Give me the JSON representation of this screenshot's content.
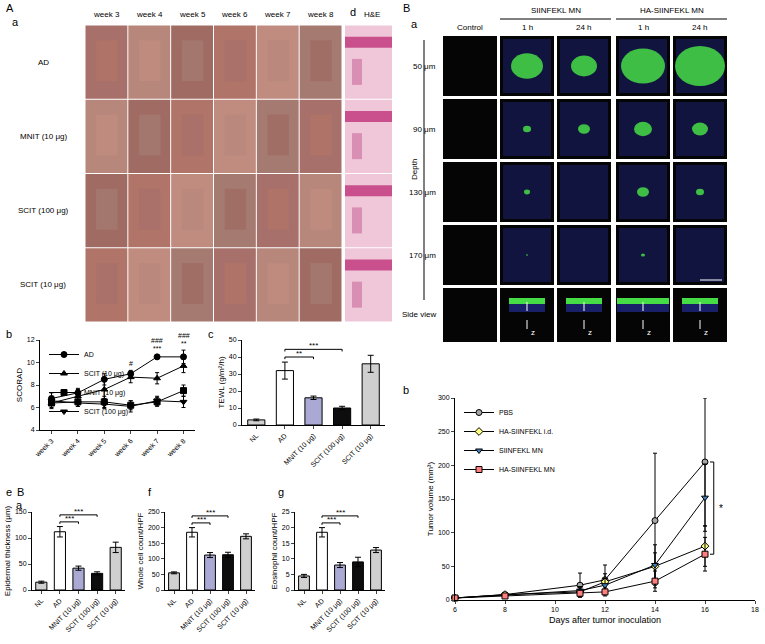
{
  "panel_labels": [
    "A",
    "a",
    "d",
    "b",
    "c",
    "e",
    "B",
    "a",
    "f",
    "g",
    "B",
    "a",
    "b"
  ],
  "photos": {
    "weeks": [
      "week 3",
      "week 4",
      "week 5",
      "week 6",
      "week 7",
      "week 8"
    ],
    "groups": [
      "AD",
      "MNIT (10 μg)",
      "SCIT (100 μg)",
      "SCIT (10 μg)"
    ],
    "stain": "H&E"
  },
  "microscopy": {
    "columns": [
      "Control",
      "SIINFEKL MN",
      "HA-SIINFEKL MN"
    ],
    "times": [
      "1 h",
      "24 h",
      "1 h",
      "24 h"
    ],
    "axis_title": "Depth",
    "rows": [
      "50 μm",
      "90 μm",
      "130 μm",
      "170 μm",
      "Side view"
    ],
    "arrow_label": "z"
  },
  "chart_data": [
    {
      "type": "line",
      "y_label": "SCORAD",
      "categories": [
        "week 3",
        "week 4",
        "week 5",
        "week 6",
        "week 7",
        "week 8"
      ],
      "series": [
        {
          "name": "AD",
          "color": "#000000",
          "marker": "circle",
          "values": [
            6.8,
            7.3,
            8.5,
            9.0,
            10.5,
            10.5
          ],
          "errors": [
            0.5,
            0.4,
            0.5,
            0.3,
            0.2,
            0.6
          ]
        },
        {
          "name": "SCIT (10 μg)",
          "color": "#000000",
          "marker": "triangle-up",
          "values": [
            6.4,
            7.0,
            7.6,
            8.7,
            8.6,
            9.7
          ],
          "errors": [
            0.5,
            0.6,
            0.8,
            0.5,
            0.5,
            0.6
          ]
        },
        {
          "name": "MNIT (10 μg)",
          "color": "#000000",
          "marker": "square",
          "values": [
            6.4,
            6.5,
            6.5,
            6.2,
            6.5,
            7.5
          ],
          "errors": [
            0.4,
            0.4,
            0.5,
            0.4,
            0.4,
            0.5
          ]
        },
        {
          "name": "SCIT (100 μg)",
          "color": "#000000",
          "marker": "triangle-down",
          "values": [
            6.6,
            6.4,
            6.3,
            6.1,
            6.6,
            6.5
          ],
          "errors": [
            0.4,
            0.3,
            0.4,
            0.5,
            0.4,
            0.5
          ]
        }
      ],
      "ylim": [
        4,
        12
      ],
      "yticks": [
        4,
        6,
        8,
        10,
        12
      ],
      "grid": false,
      "legend": "top-left",
      "annotations": [
        {
          "x": "week 6",
          "text": [
            "#"
          ]
        },
        {
          "x": "week 7",
          "text": [
            "###",
            "***"
          ]
        },
        {
          "x": "week 8",
          "text": [
            "###",
            "**"
          ]
        }
      ]
    },
    {
      "type": "bar",
      "y_label": "TEWL (g/m²/h)",
      "categories": [
        "NL",
        "AD",
        "MNIT (10 μg)",
        "SCIT (100 μg)",
        "SCIT (10 μg)"
      ],
      "values": [
        3,
        32,
        16,
        10,
        36
      ],
      "errors": [
        0.5,
        5,
        1,
        1,
        5
      ],
      "colors": [
        "#d0d0d0",
        "#ffffff",
        "#a9a9d4",
        "#0d0d0d",
        "#cfcfcf"
      ],
      "ylim": [
        0,
        50
      ],
      "yticks": [
        0,
        10,
        20,
        30,
        40,
        50
      ],
      "grid": false,
      "annotations": [
        {
          "text": "**",
          "between": [
            "AD",
            "MNIT (10 μg)"
          ]
        },
        {
          "text": "***",
          "between": [
            "AD",
            "SCIT (100 μg)"
          ]
        }
      ]
    },
    {
      "type": "bar",
      "y_label": "Epidermal thickness (μm)",
      "categories": [
        "NL",
        "AD",
        "MNIT (10 μg)",
        "SCIT (100 μg)",
        "SCIT (10 μg)"
      ],
      "values": [
        15,
        112,
        42,
        32,
        82
      ],
      "errors": [
        2,
        10,
        4,
        3,
        10
      ],
      "colors": [
        "#d0d0d0",
        "#ffffff",
        "#a9a9d4",
        "#0d0d0d",
        "#cfcfcf"
      ],
      "ylim": [
        0,
        150
      ],
      "yticks": [
        0,
        50,
        100,
        150
      ],
      "grid": false,
      "annotations": [
        {
          "text": "***",
          "between": [
            "AD",
            "MNIT (10 μg)"
          ]
        },
        {
          "text": "***",
          "between": [
            "AD",
            "SCIT (100 μg)"
          ]
        }
      ]
    },
    {
      "type": "bar",
      "y_label": "Whole cell count/HPF",
      "categories": [
        "NL",
        "AD",
        "MNIT (10 μg)",
        "SCIT (100 μg)",
        "SCIT (10 μg)"
      ],
      "values": [
        55,
        185,
        112,
        113,
        172
      ],
      "errors": [
        3,
        15,
        8,
        8,
        8
      ],
      "colors": [
        "#d0d0d0",
        "#ffffff",
        "#a9a9d4",
        "#0d0d0d",
        "#cfcfcf"
      ],
      "ylim": [
        0,
        250
      ],
      "yticks": [
        0,
        50,
        100,
        150,
        200,
        250
      ],
      "grid": false,
      "annotations": [
        {
          "text": "***",
          "between": [
            "AD",
            "MNIT (10 μg)"
          ]
        },
        {
          "text": "***",
          "between": [
            "AD",
            "SCIT (100 μg)"
          ]
        }
      ]
    },
    {
      "type": "bar",
      "y_label": "Eosinophil count/HPF",
      "categories": [
        "NL",
        "AD",
        "MNIT (10 μg)",
        "SCIT (100 μg)",
        "SCIT (10 μg)"
      ],
      "values": [
        4.5,
        18.5,
        8,
        9,
        12.8
      ],
      "errors": [
        0.5,
        1.5,
        0.8,
        1.5,
        0.8
      ],
      "colors": [
        "#d0d0d0",
        "#ffffff",
        "#a9a9d4",
        "#0d0d0d",
        "#cfcfcf"
      ],
      "ylim": [
        0,
        25
      ],
      "yticks": [
        0,
        5,
        10,
        15,
        20,
        25
      ],
      "grid": false,
      "annotations": [
        {
          "text": "***",
          "between": [
            "AD",
            "MNIT (10 μg)"
          ]
        },
        {
          "text": "***",
          "between": [
            "AD",
            "SCIT (100 μg)"
          ]
        }
      ]
    },
    {
      "type": "line",
      "x_label": "Days after tumor inoculation",
      "y_label": "Tumor volume (mm³)",
      "x": [
        6,
        8,
        11,
        12,
        14,
        16
      ],
      "series": [
        {
          "name": "PBS",
          "color": "#a6a6a6",
          "marker": "circle",
          "values": [
            3,
            8,
            22,
            30,
            118,
            205
          ],
          "errors": [
            1,
            3,
            18,
            22,
            100,
            95
          ]
        },
        {
          "name": "HA-SIINFEKL i.d.",
          "color": "#ffff80",
          "marker": "diamond",
          "values": [
            3,
            8,
            12,
            27,
            50,
            80
          ],
          "errors": [
            1,
            2,
            6,
            12,
            20,
            30
          ]
        },
        {
          "name": "SIINFEKL MN",
          "color": "#3f7fbf",
          "marker": "triangle-down",
          "values": [
            3,
            7,
            14,
            22,
            52,
            152
          ],
          "errors": [
            1,
            2,
            6,
            10,
            30,
            50
          ]
        },
        {
          "name": "HA-SIINFEKL MN",
          "color": "#ff7f7f",
          "marker": "square",
          "values": [
            3,
            6,
            10,
            12,
            28,
            68
          ],
          "errors": [
            1,
            2,
            5,
            6,
            15,
            25
          ]
        }
      ],
      "xlim": [
        6,
        18
      ],
      "xticks": [
        6,
        8,
        10,
        12,
        14,
        16,
        18
      ],
      "ylim": [
        0,
        300
      ],
      "yticks": [
        0,
        50,
        100,
        150,
        200,
        250,
        300
      ],
      "grid": false,
      "legend": "top-left",
      "annotations": [
        {
          "text": "*",
          "between": [
            "PBS",
            "HA-SIINFEKL MN"
          ],
          "x": 16
        }
      ]
    }
  ]
}
